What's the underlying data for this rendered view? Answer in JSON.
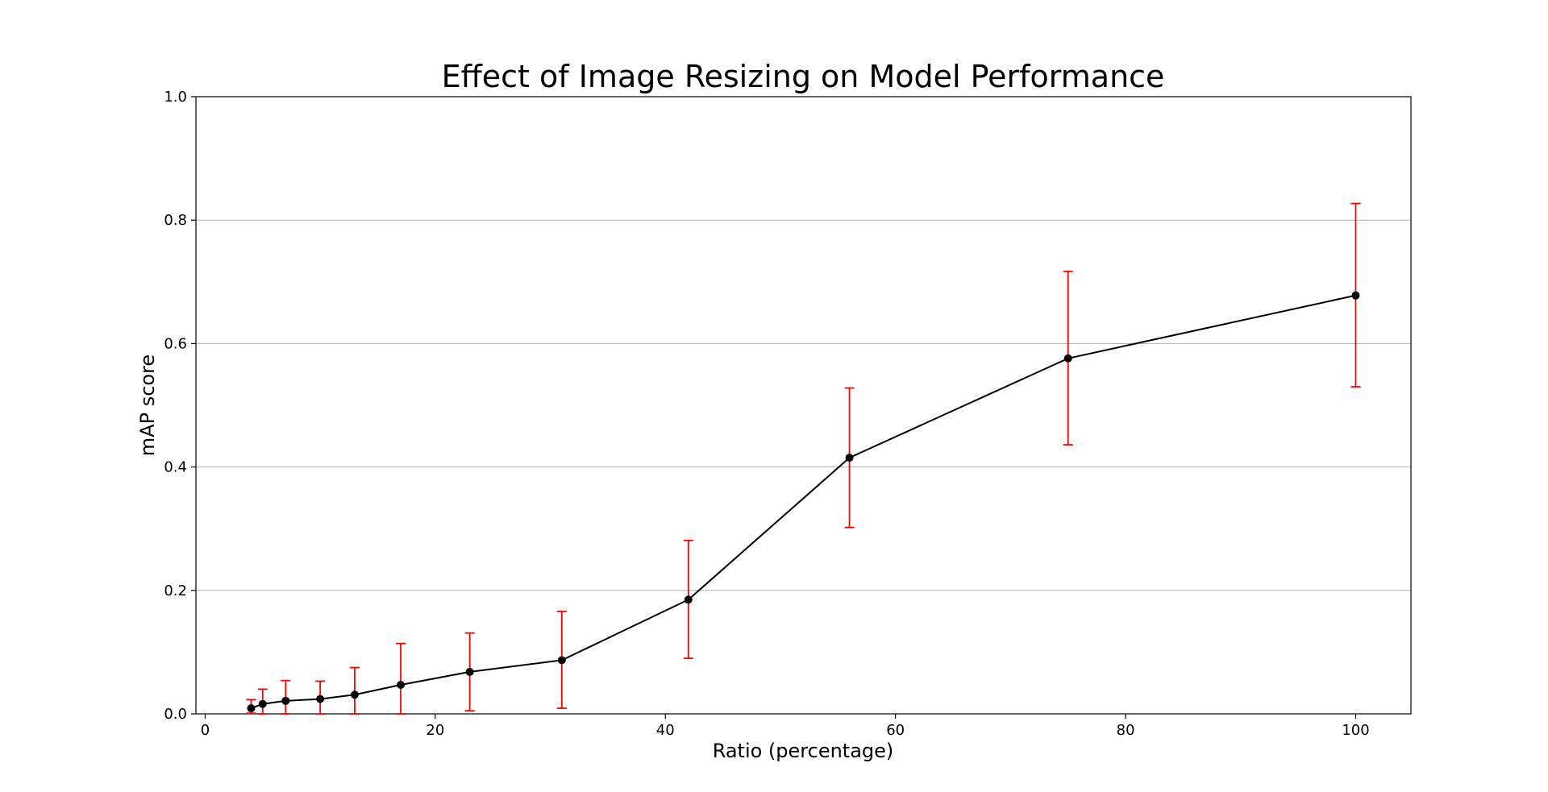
{
  "chart_data": {
    "type": "line",
    "title": "Effect of Image Resizing on Model Performance",
    "xlabel": "Ratio (percentage)",
    "ylabel": "mAP score",
    "xlim": [
      -0.8,
      104.8
    ],
    "ylim": [
      0.0,
      1.0
    ],
    "xticks": [
      0,
      20,
      40,
      60,
      80,
      100
    ],
    "yticks": [
      0.0,
      0.2,
      0.4,
      0.6,
      0.8,
      1.0
    ],
    "xtick_labels": [
      "0",
      "20",
      "40",
      "60",
      "80",
      "100"
    ],
    "ytick_labels": [
      "0.0",
      "0.2",
      "0.4",
      "0.6",
      "0.8",
      "1.0"
    ],
    "grid": "horizontal",
    "series": [
      {
        "x": [
          4,
          5,
          7,
          10,
          13,
          17,
          23,
          31,
          42,
          56,
          75,
          100
        ],
        "y": [
          0.009,
          0.016,
          0.021,
          0.024,
          0.031,
          0.047,
          0.068,
          0.087,
          0.185,
          0.415,
          0.576,
          0.678
        ],
        "yerr_low": [
          0.001,
          0.0,
          0.0,
          0.0,
          0.0,
          0.0,
          0.005,
          0.009,
          0.09,
          0.302,
          0.436,
          0.53
        ],
        "yerr_high": [
          0.023,
          0.04,
          0.054,
          0.053,
          0.075,
          0.114,
          0.131,
          0.166,
          0.281,
          0.528,
          0.717,
          0.827
        ],
        "color": "#000000",
        "error_color": "#ff0000"
      }
    ]
  }
}
